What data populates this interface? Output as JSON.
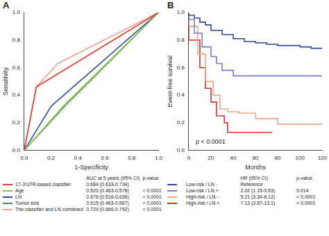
{
  "chart_data": [
    {
      "type": "line",
      "title": "A",
      "x_label": "1-Specificity",
      "y_label": "Sensitivity",
      "xlim": [
        0,
        1
      ],
      "ylim": [
        0,
        1
      ],
      "xticks": [
        {
          "value": 0,
          "label": "0.0"
        },
        0.2,
        0.4,
        0.6,
        0.8,
        {
          "value": 1,
          "label": "1.0"
        }
      ],
      "yticks": [
        {
          "value": 0,
          "label": "0.0"
        },
        0.2,
        0.4,
        0.6,
        0.8,
        {
          "value": 1,
          "label": "1.0"
        }
      ],
      "grid": false,
      "legend_table": [
        "AUC at 5 years (95% CI)",
        "p-value"
      ],
      "series": [
        {
          "color": "#aaaaaa",
          "line_style": "dashed",
          "x": [
            0,
            1
          ],
          "values": [
            0,
            1
          ]
        },
        {
          "name": "17-3'UTR-based classifier",
          "color": "#e8382a",
          "stat": "0.684 (0.633-0.734)",
          "x": [
            0,
            0.09,
            1
          ],
          "values": [
            0,
            0.46,
            1
          ]
        },
        {
          "name": "Age",
          "color": "#8cc63f",
          "stat": "0.520 (0.463-0.578)",
          "p_value": "< 0.0001",
          "x": [
            0,
            0.3,
            1
          ],
          "values": [
            0,
            0.33,
            1
          ]
        },
        {
          "name": "LN",
          "color": "#2f4fa0",
          "stat": "0.576 (0.516-0.636)",
          "p_value": "< 0.0001",
          "x": [
            0,
            0.2,
            1
          ],
          "values": [
            0,
            0.32,
            1
          ]
        },
        {
          "name": "Tumor size",
          "color": "#4d8a63",
          "stat": "0.515 (0.463-0.567)",
          "p_value": "< 0.0001",
          "x": [
            0,
            0.3,
            1
          ],
          "values": [
            0,
            0.32,
            1
          ]
        },
        {
          "name": "The classifier and LN combined",
          "color": "#f4a28c",
          "stat": "0.729 (0.666-0.792)",
          "p_value": "< 0.0001",
          "x": [
            0,
            0.09,
            0.25,
            1
          ],
          "values": [
            0,
            0.46,
            0.63,
            1
          ]
        }
      ]
    },
    {
      "type": "step",
      "title": "B",
      "x_label": "Months",
      "y_label": "Event-free survival",
      "xlim": [
        0,
        120
      ],
      "ylim": [
        0,
        1
      ],
      "xticks": [
        0,
        20,
        40,
        60,
        80,
        100,
        120
      ],
      "yticks": [
        {
          "value": 0,
          "label": "0.0"
        },
        0.2,
        0.4,
        0.6,
        0.8,
        {
          "value": 1,
          "label": "1.0"
        }
      ],
      "grid": false,
      "annotations": [
        "p < 0.0001"
      ],
      "legend_table": [
        "HR (95% CI)",
        "p-value"
      ],
      "series": [
        {
          "name": "Low-risk / LN -",
          "color": "#2b4a9a",
          "stat": "Reference",
          "x": [
            0,
            5,
            10,
            15,
            20,
            30,
            40,
            50,
            60,
            70,
            80,
            90,
            100,
            110,
            120
          ],
          "values": [
            1,
            0.98,
            0.96,
            0.93,
            0.91,
            0.87,
            0.84,
            0.81,
            0.79,
            0.78,
            0.77,
            0.76,
            0.76,
            0.75,
            0.74
          ]
        },
        {
          "name": "Low-risk / LN +",
          "color": "#7b78c8",
          "stat": "2.02 (1.15-3.53)",
          "p_value": "0.014",
          "x": [
            0,
            5,
            12,
            20,
            25,
            30,
            40,
            55,
            120
          ],
          "values": [
            1,
            0.95,
            0.85,
            0.75,
            0.68,
            0.63,
            0.58,
            0.54,
            0.54
          ]
        },
        {
          "name": "High-risk / LN -",
          "color": "#f4a582",
          "stat": "5.21 (3.34-8.12)",
          "p_value": "< 0.0001",
          "x": [
            0,
            8,
            15,
            22,
            28,
            35,
            45,
            60,
            80,
            90,
            120
          ],
          "values": [
            1,
            0.9,
            0.7,
            0.5,
            0.4,
            0.3,
            0.28,
            0.27,
            0.23,
            0.19,
            0.19
          ]
        },
        {
          "name": "High-risk / LN +",
          "color": "#e0301e",
          "stat": "7.13 (3.87-13.1)",
          "p_value": "< 0.0001",
          "x": [
            0,
            10,
            15,
            20,
            25,
            32,
            35,
            40,
            75
          ],
          "values": [
            1,
            0.8,
            0.6,
            0.45,
            0.35,
            0.25,
            0.2,
            0.13,
            0.13
          ]
        }
      ]
    }
  ]
}
